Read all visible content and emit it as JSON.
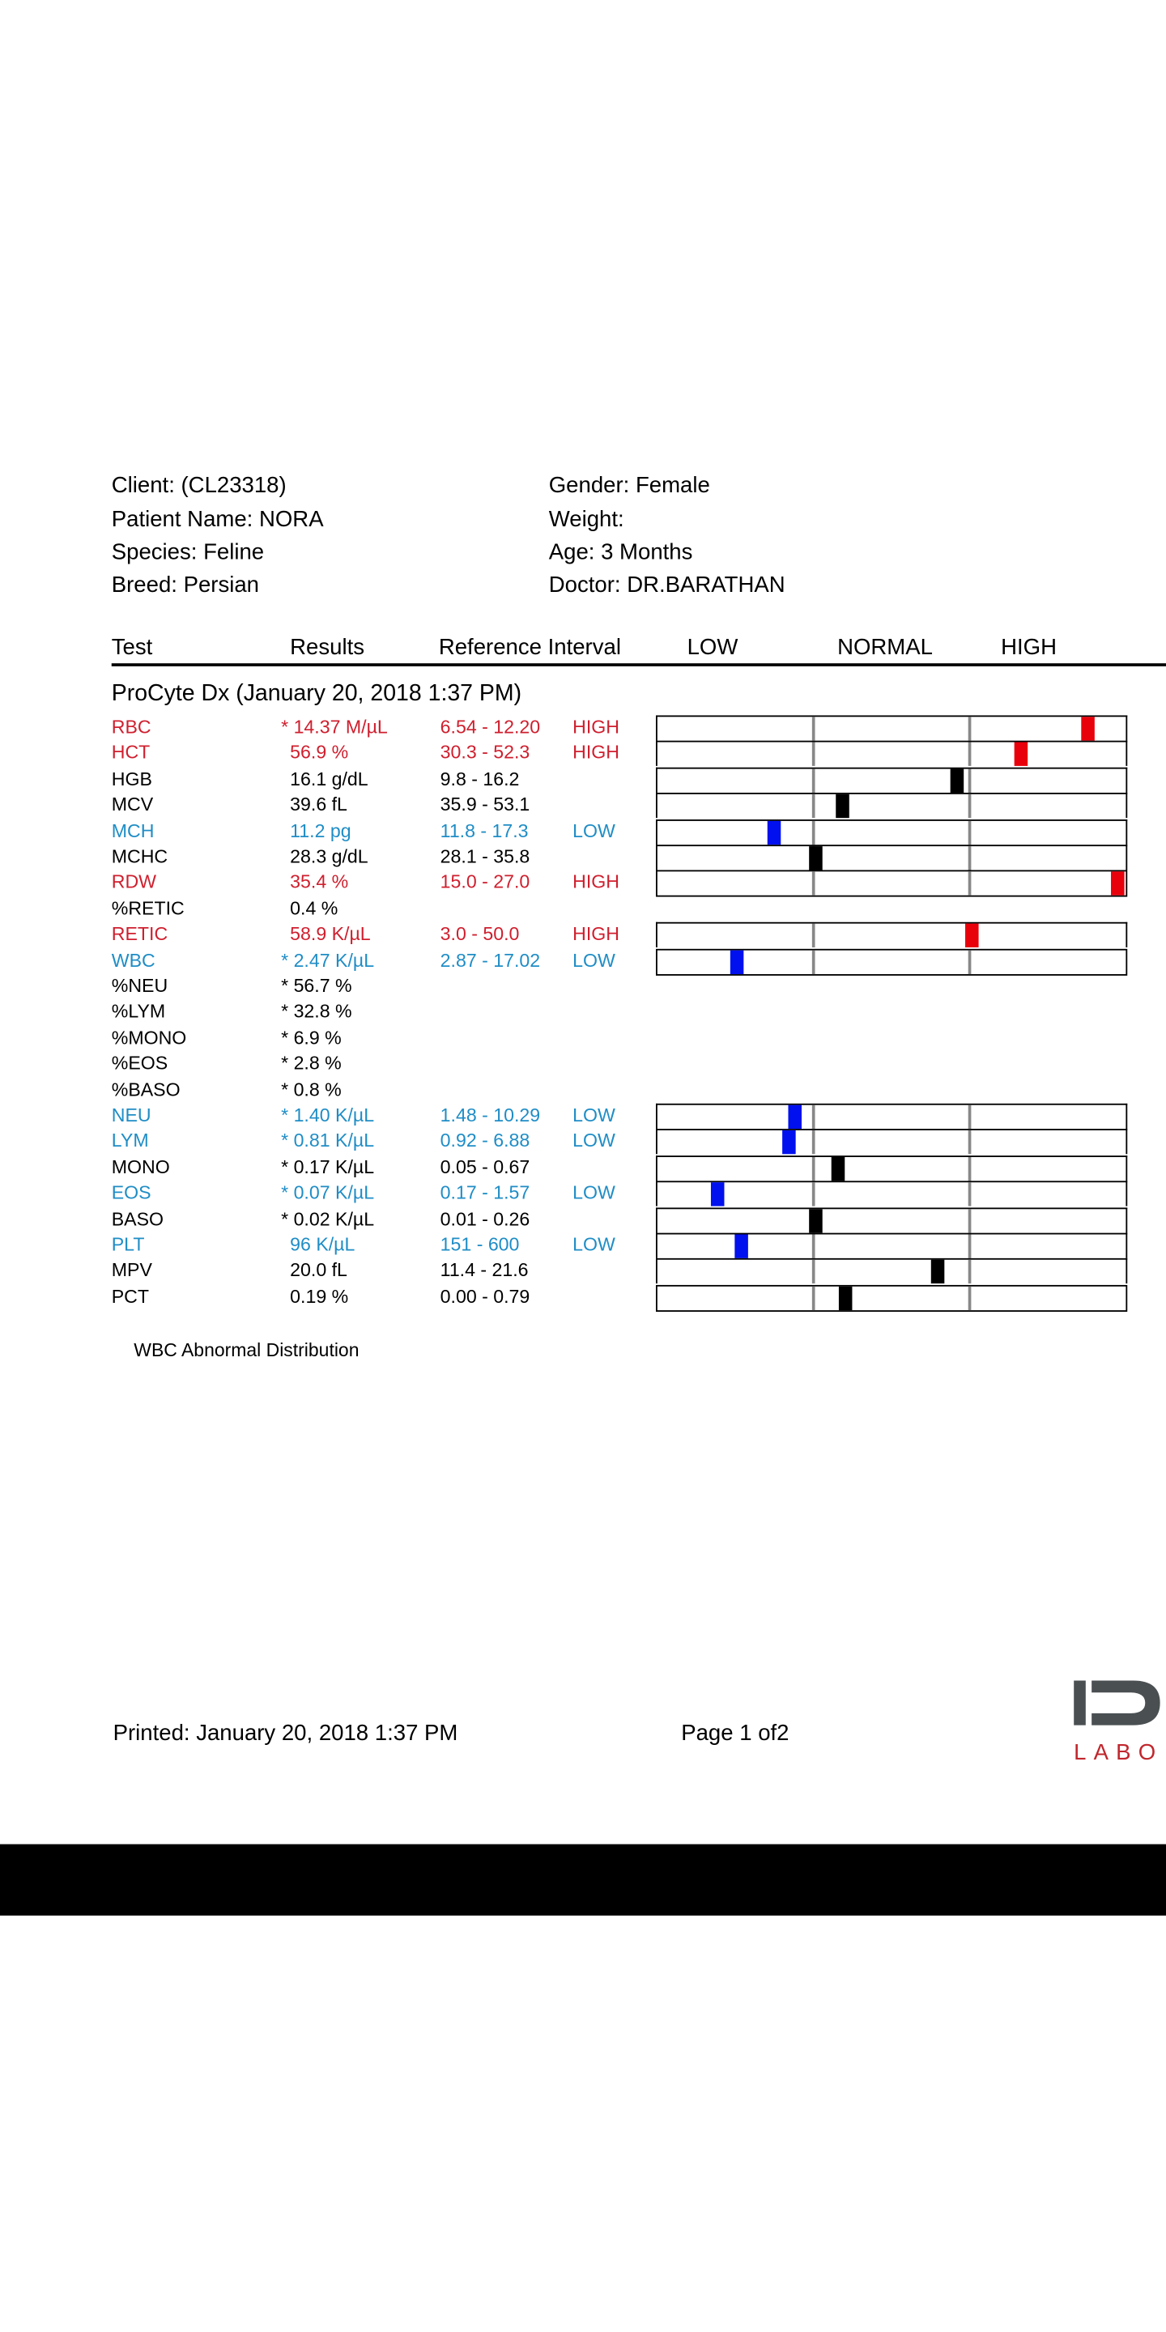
{
  "patient": {
    "client": "Client:  (CL23318)",
    "patient_name": "Patient Name: NORA",
    "species": "Species: Feline",
    "breed": "Breed: Persian",
    "gender": "Gender: Female",
    "weight": "Weight:",
    "age": "Age: 3 Months",
    "doctor": "Doctor: DR.BARATHAN"
  },
  "columns": {
    "test": "Test",
    "results": "Results",
    "reference": "Reference Interval",
    "low": "LOW",
    "normal": "NORMAL",
    "high": "HIGH"
  },
  "section_title": "ProCyte Dx (January 20, 2018 1:37 PM)",
  "colors": {
    "high": "#cf1f2e",
    "low": "#1f8dc6",
    "marker_high": "#e8000b",
    "marker_low": "#0010ee",
    "marker_normal": "#000000"
  },
  "results": [
    {
      "test": "RBC",
      "result": "* 14.37 M/µL",
      "ref": "6.54 - 12.20",
      "flag": "HIGH",
      "status": "high",
      "marker": 0.918
    },
    {
      "test": "HCT",
      "result": "56.9 %",
      "ref": "30.3 - 52.3",
      "flag": "HIGH",
      "status": "high",
      "marker": 0.775
    },
    {
      "test": "HGB",
      "result": "16.1 g/dL",
      "ref": "9.8 - 16.2",
      "flag": "",
      "status": "normal",
      "marker": 0.639
    },
    {
      "test": "MCV",
      "result": "39.6 fL",
      "ref": "35.9 - 53.1",
      "flag": "",
      "status": "normal",
      "marker": 0.396
    },
    {
      "test": "MCH",
      "result": "11.2 pg",
      "ref": "11.8 - 17.3",
      "flag": "LOW",
      "status": "low",
      "marker": 0.25
    },
    {
      "test": "MCHC",
      "result": "28.3 g/dL",
      "ref": "28.1 - 35.8",
      "flag": "",
      "status": "normal",
      "marker": 0.339
    },
    {
      "test": "RDW",
      "result": "35.4 %",
      "ref": "15.0 - 27.0",
      "flag": "HIGH",
      "status": "high",
      "marker": 0.984
    },
    {
      "test": "%RETIC",
      "result": "0.4 %",
      "ref": "",
      "flag": "",
      "status": "normal"
    },
    {
      "test": "RETIC",
      "result": "58.9 K/µL",
      "ref": "3.0 - 50.0",
      "flag": "HIGH",
      "status": "high",
      "marker": 0.671
    },
    {
      "test": "WBC",
      "result": "* 2.47 K/µL",
      "ref": "2.87 - 17.02",
      "flag": "LOW",
      "status": "low",
      "marker": 0.171
    },
    {
      "test": "%NEU",
      "result": "* 56.7 %",
      "ref": "",
      "flag": "",
      "status": "normal"
    },
    {
      "test": "%LYM",
      "result": "* 32.8 %",
      "ref": "",
      "flag": "",
      "status": "normal"
    },
    {
      "test": "%MONO",
      "result": "* 6.9 %",
      "ref": "",
      "flag": "",
      "status": "normal"
    },
    {
      "test": "%EOS",
      "result": "* 2.8 %",
      "ref": "",
      "flag": "",
      "status": "normal"
    },
    {
      "test": "%BASO",
      "result": "* 0.8 %",
      "ref": "",
      "flag": "",
      "status": "normal"
    },
    {
      "test": "NEU",
      "result": "* 1.40 K/µL",
      "ref": "1.48 - 10.29",
      "flag": "LOW",
      "status": "low",
      "marker": 0.294
    },
    {
      "test": "LYM",
      "result": "* 0.81 K/µL",
      "ref": "0.92 - 6.88",
      "flag": "LOW",
      "status": "low",
      "marker": 0.282
    },
    {
      "test": "MONO",
      "result": "* 0.17 K/µL",
      "ref": "0.05 - 0.67",
      "flag": "",
      "status": "normal",
      "marker": 0.386
    },
    {
      "test": "EOS",
      "result": "* 0.07 K/µL",
      "ref": "0.17 - 1.57",
      "flag": "LOW",
      "status": "low",
      "marker": 0.13
    },
    {
      "test": "BASO",
      "result": "* 0.02 K/µL",
      "ref": "0.01 - 0.26",
      "flag": "",
      "status": "normal",
      "marker": 0.339
    },
    {
      "test": "PLT",
      "result": "96 K/µL",
      "ref": "151 - 600",
      "flag": "LOW",
      "status": "low",
      "marker": 0.18
    },
    {
      "test": "MPV",
      "result": "20.0 fL",
      "ref": "11.4 - 21.6",
      "flag": "",
      "status": "normal",
      "marker": 0.598
    },
    {
      "test": "PCT",
      "result": "0.19 %",
      "ref": "0.00 - 0.79",
      "flag": "",
      "status": "normal",
      "marker": 0.402
    }
  ],
  "note": "WBC Abnormal Distribution",
  "footer": {
    "printed": "Printed: January 20, 2018 1:37 PM",
    "page": "Page 1 of2"
  },
  "logo": {
    "text": "IDEXX",
    "sub": "LABORATORIES"
  }
}
